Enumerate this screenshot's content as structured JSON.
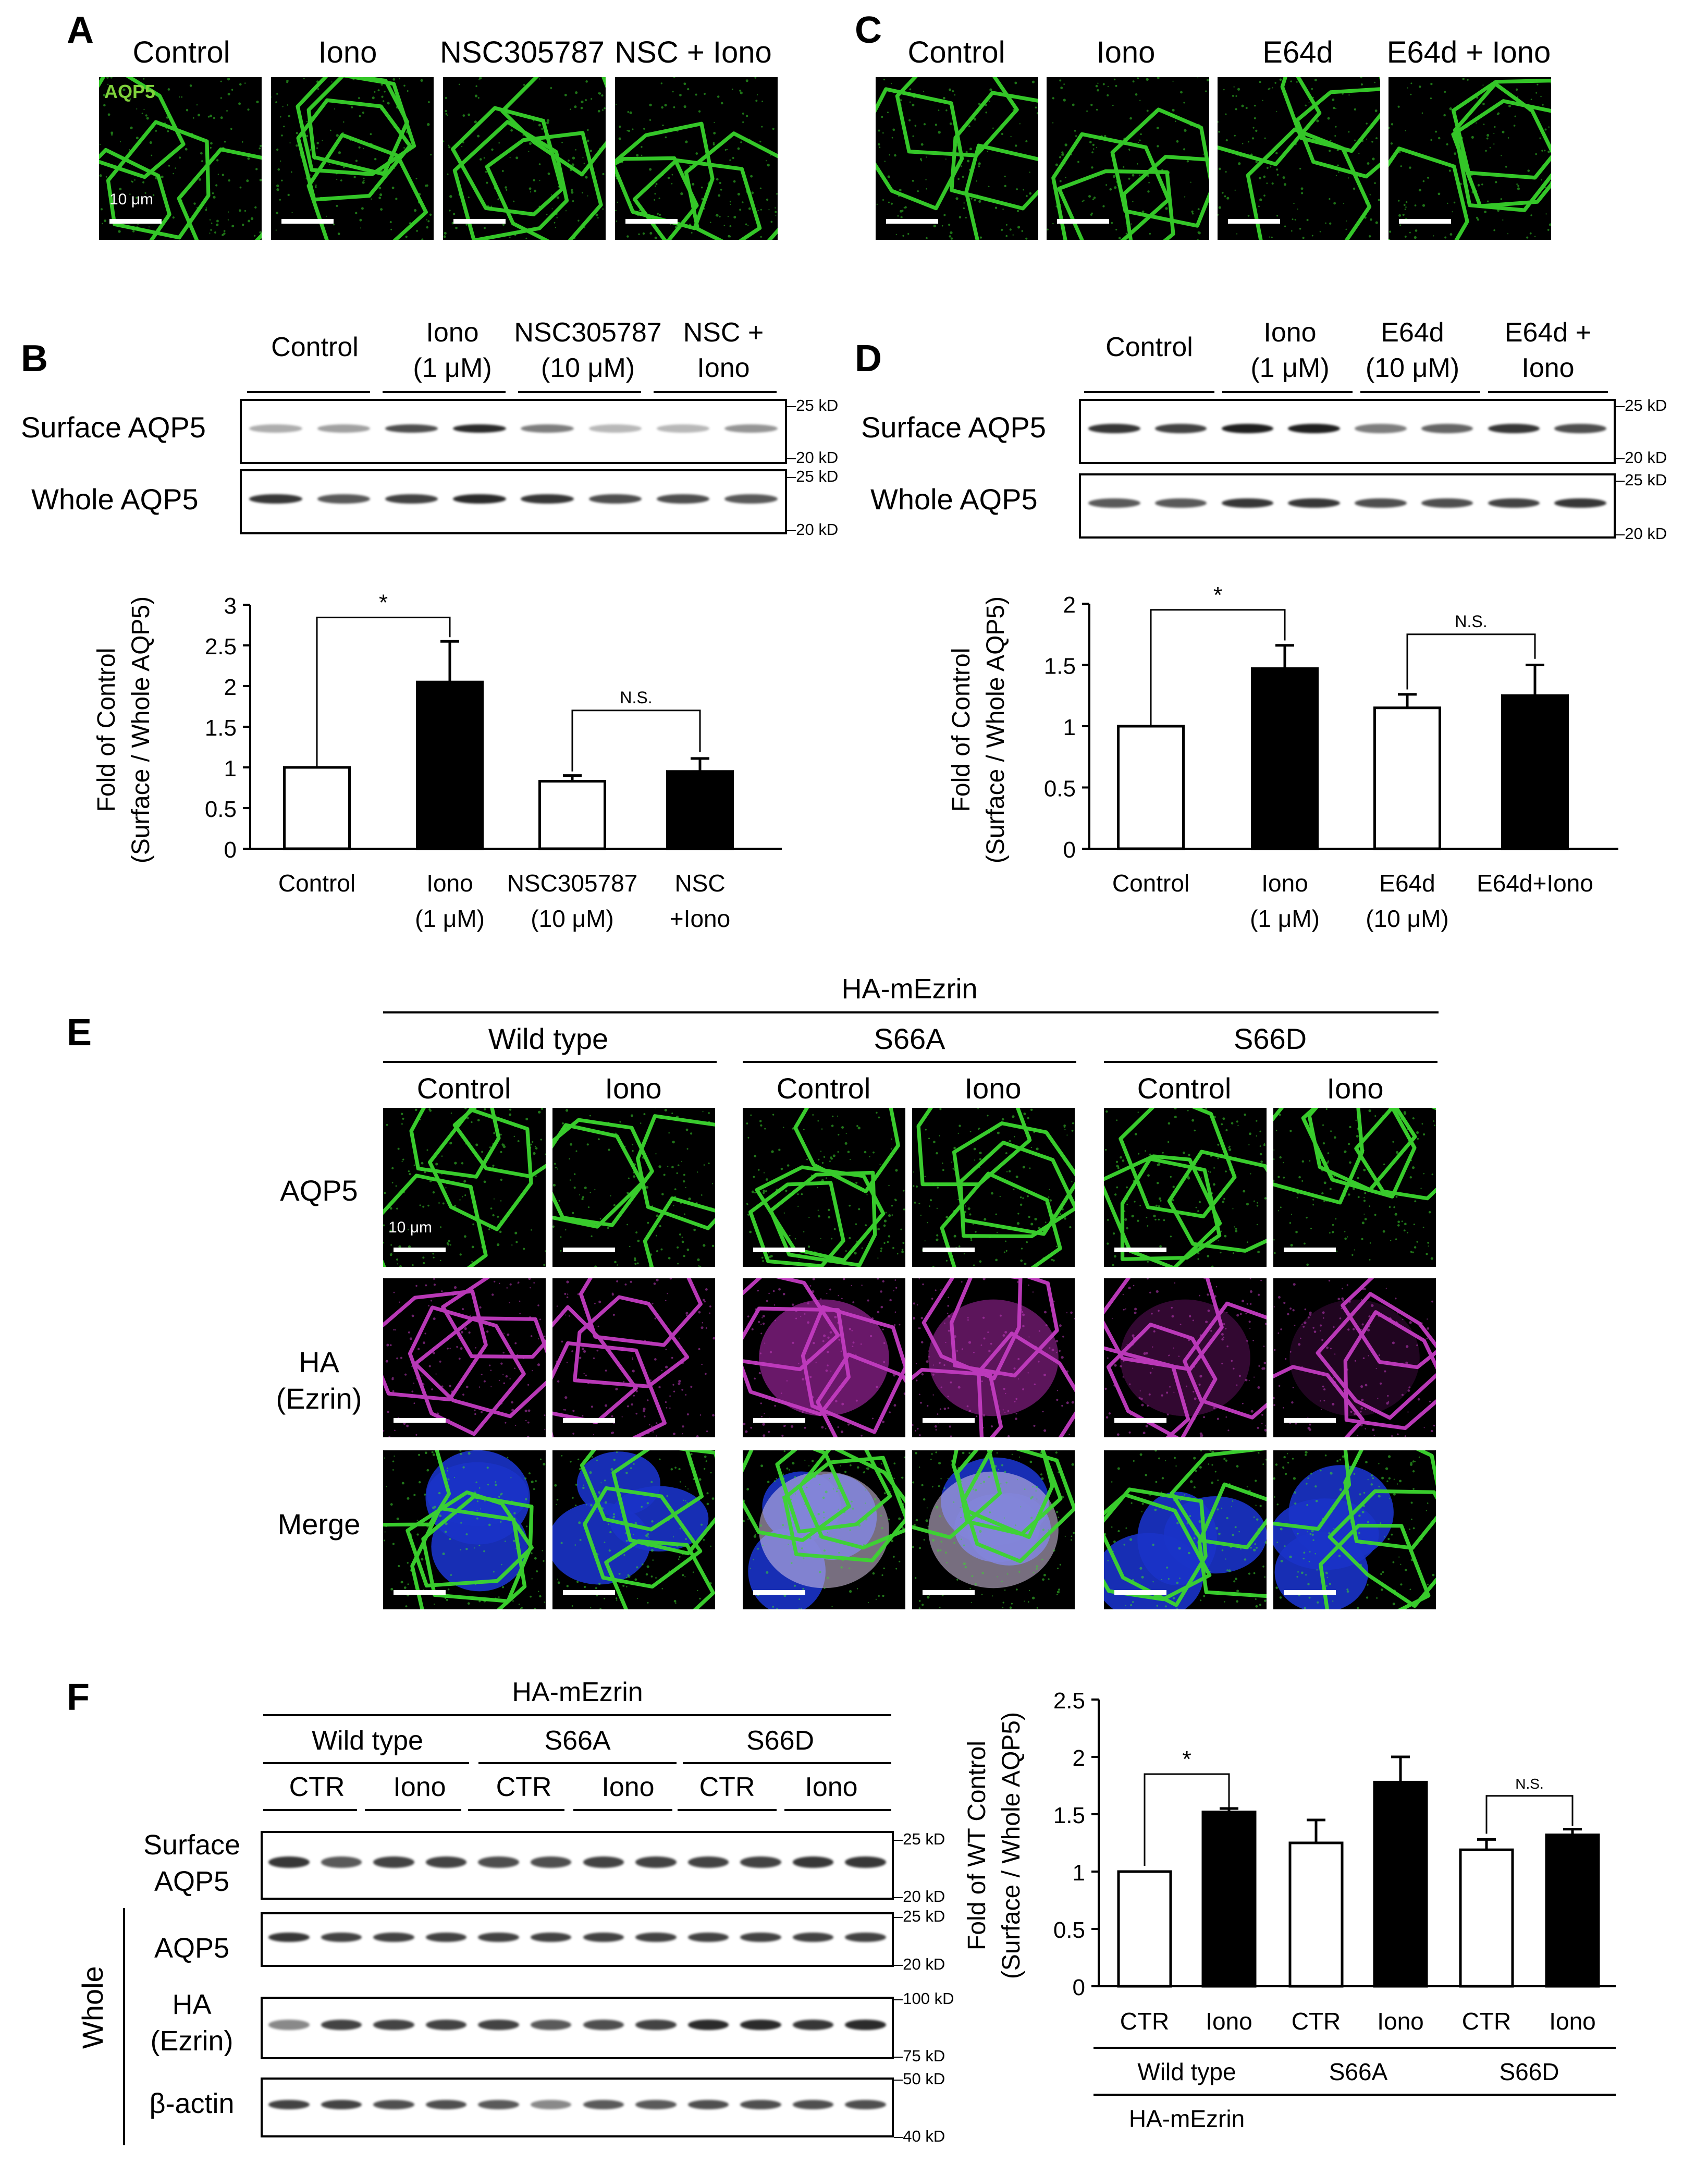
{
  "panel_a": {
    "letter": "A",
    "columns": [
      "Control",
      "Iono",
      "NSC305787",
      "NSC + Iono"
    ],
    "stain_label": "AQP5",
    "scale_label": "10 μm"
  },
  "panel_c": {
    "letter": "C",
    "columns": [
      "Control",
      "Iono",
      "E64d",
      "E64d + Iono"
    ]
  },
  "panel_b": {
    "letter": "B",
    "lanes": [
      [
        "Control"
      ],
      [
        "Iono",
        "(1 μM)"
      ],
      [
        "NSC305787",
        "(10 μM)"
      ],
      [
        "NSC +",
        "Iono"
      ]
    ],
    "rows": [
      "Surface AQP5",
      "Whole AQP5"
    ],
    "markers": {
      "s_top": "25 kD",
      "s_bot": "20 kD",
      "w_top": "25 kD",
      "w_bot": "20 kD"
    },
    "star": "*",
    "ns": "N.S."
  },
  "panel_d": {
    "letter": "D",
    "lanes": [
      [
        "Control"
      ],
      [
        "Iono",
        "(1 μM)"
      ],
      [
        "E64d",
        "(10 μM)"
      ],
      [
        "E64d +",
        "Iono"
      ]
    ],
    "rows": [
      "Surface AQP5",
      "Whole AQP5"
    ],
    "markers": {
      "s_top": "25 kD",
      "s_bot": "20 kD",
      "w_top": "25 kD",
      "w_bot": "20 kD"
    },
    "star": "*",
    "ns": "N.S."
  },
  "panel_e": {
    "letter": "E",
    "header": "HA-mEzrin",
    "groups": [
      "Wild type",
      "S66A",
      "S66D"
    ],
    "conditions": [
      "Control",
      "Iono",
      "Control",
      "Iono",
      "Control",
      "Iono"
    ],
    "rows": [
      [
        "AQP5"
      ],
      [
        "HA",
        "(Ezrin)"
      ],
      [
        "Merge"
      ]
    ],
    "scale_label": "10 μm"
  },
  "panel_f": {
    "letter": "F",
    "header": "HA-mEzrin",
    "groups": [
      "Wild type",
      "S66A",
      "S66D"
    ],
    "lanes": [
      "CTR",
      "Iono",
      "CTR",
      "Iono",
      "CTR",
      "Iono"
    ],
    "rows": [
      [
        "Surface",
        "AQP5"
      ],
      [
        "AQP5"
      ],
      [
        "HA",
        "(Ezrin)"
      ],
      [
        "β-actin"
      ]
    ],
    "whole_label": "Whole",
    "markers": {
      "m1": [
        "25 kD",
        "20 kD"
      ],
      "m2": [
        "25 kD",
        "20 kD"
      ],
      "m3": [
        "100 kD",
        "75 kD"
      ],
      "m4": [
        "50 kD",
        "40 kD"
      ]
    },
    "star": "*",
    "ns": "N.S."
  },
  "chart_data": [
    {
      "panel": "B",
      "type": "bar",
      "ylabel": [
        "Fold of Control",
        "(Surface / Whole AQP5)"
      ],
      "ylim": [
        0,
        3
      ],
      "yticks": [
        "0",
        "0.5",
        "1",
        "1.5",
        "2",
        "2.5",
        "3"
      ],
      "categories": [
        [
          "Control"
        ],
        [
          "Iono",
          "(1 μM)"
        ],
        [
          "NSC305787",
          "(10 μM)"
        ],
        [
          "NSC",
          "+Iono"
        ]
      ],
      "values": [
        1.0,
        2.05,
        0.83,
        0.95
      ],
      "errors": [
        0,
        0.5,
        0.07,
        0.16
      ],
      "fills": [
        "white",
        "black",
        "white",
        "black"
      ]
    },
    {
      "panel": "D",
      "type": "bar",
      "ylabel": [
        "Fold of Control",
        "(Surface / Whole AQP5)"
      ],
      "ylim": [
        0,
        2
      ],
      "yticks": [
        "0",
        "0.5",
        "1",
        "1.5",
        "2"
      ],
      "categories": [
        [
          "Control"
        ],
        [
          "Iono",
          "(1 μM)"
        ],
        [
          "E64d",
          "(10 μM)"
        ],
        [
          "E64d+Iono"
        ]
      ],
      "values": [
        1.0,
        1.47,
        1.15,
        1.25
      ],
      "errors": [
        0,
        0.19,
        0.11,
        0.25
      ],
      "fills": [
        "white",
        "black",
        "white",
        "black"
      ]
    },
    {
      "panel": "F",
      "type": "bar",
      "ylabel": [
        "Fold of WT Control",
        "(Surface / Whole AQP5)"
      ],
      "ylim": [
        0,
        2.5
      ],
      "yticks": [
        "0",
        "0.5",
        "1",
        "1.5",
        "2",
        "2.5"
      ],
      "categories": [
        [
          "CTR"
        ],
        [
          "Iono"
        ],
        [
          "CTR"
        ],
        [
          "Iono"
        ],
        [
          "CTR"
        ],
        [
          "Iono"
        ]
      ],
      "groups": [
        "Wild type",
        "S66A",
        "S66D"
      ],
      "group_header": "HA-mEzrin",
      "values": [
        1.0,
        1.52,
        1.25,
        1.78,
        1.19,
        1.32
      ],
      "errors": [
        0,
        0.03,
        0.2,
        0.22,
        0.09,
        0.05
      ],
      "fills": [
        "white",
        "black",
        "white",
        "black",
        "white",
        "black"
      ]
    }
  ]
}
